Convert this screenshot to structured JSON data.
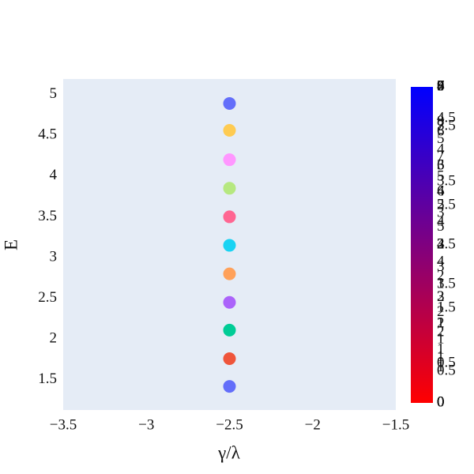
{
  "chart_data": {
    "type": "scatter",
    "x_label": "γ/λ",
    "y_label": "E",
    "x": [
      -2.5,
      -2.5,
      -2.5,
      -2.5,
      -2.5,
      -2.5,
      -2.5,
      -2.5,
      -2.5,
      -2.5,
      -2.5
    ],
    "values": [
      1.42,
      1.76,
      2.11,
      2.45,
      2.8,
      3.15,
      3.5,
      3.85,
      4.2,
      4.56,
      4.89
    ],
    "colors": [
      "#636efa",
      "#ef553b",
      "#00cc96",
      "#ab63fa",
      "#ffa15a",
      "#19d3f3",
      "#ff6692",
      "#b6e880",
      "#ff97ff",
      "#fecb52",
      "#636efa"
    ],
    "xlim": [
      -3.5,
      -1.5
    ],
    "xticks": [
      {
        "value": -3.5,
        "label": "−3.5"
      },
      {
        "value": -3,
        "label": "−3"
      },
      {
        "value": -2.5,
        "label": "−2.5"
      },
      {
        "value": -2,
        "label": "−2"
      },
      {
        "value": -1.5,
        "label": "−1.5"
      }
    ],
    "ylim": [
      1.13,
      5.19
    ],
    "yticks": [
      1.5,
      2,
      2.5,
      3,
      3.5,
      4,
      4.5,
      5
    ],
    "grid": false,
    "background": "#e5ecf6",
    "colorscale": [
      "#ff0000",
      "#0000ff"
    ],
    "colorbars": [
      {
        "range": [
          0,
          9
        ],
        "ticks": [
          0,
          1,
          2,
          3,
          4,
          5,
          6,
          7,
          8,
          9
        ]
      },
      {
        "range": [
          0,
          8
        ],
        "ticks": [
          0,
          1,
          2,
          3,
          4,
          5,
          6,
          7,
          8
        ]
      },
      {
        "range": [
          0,
          7
        ],
        "ticks": [
          0,
          1,
          2,
          3,
          4,
          5,
          6,
          7
        ]
      },
      {
        "range": [
          0,
          6
        ],
        "ticks": [
          0,
          1,
          2,
          3,
          4,
          5,
          6
        ]
      },
      {
        "range": [
          0,
          5
        ],
        "ticks": [
          0,
          0.5,
          1,
          1.5,
          2,
          2.5,
          3,
          3.5,
          4,
          4.5,
          5
        ]
      },
      {
        "range": [
          0,
          4
        ],
        "ticks": [
          0,
          0.5,
          1,
          1.5,
          2,
          2.5,
          3,
          3.5,
          4
        ]
      }
    ]
  }
}
